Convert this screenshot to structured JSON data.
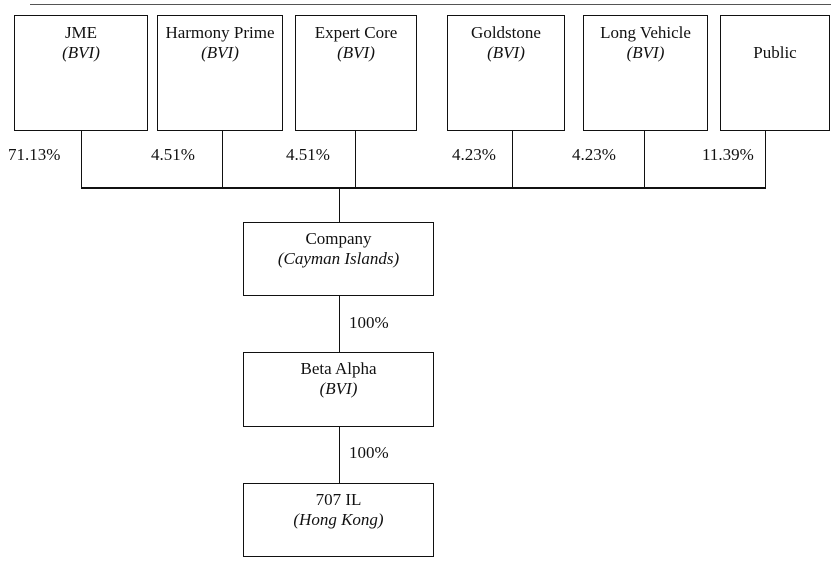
{
  "diagram": {
    "type": "corporate-ownership-structure",
    "top_row": [
      {
        "name": "JME",
        "jurisdiction": "(BVI)",
        "ownership_pct": "71.13%"
      },
      {
        "name": "Harmony Prime",
        "jurisdiction": "(BVI)",
        "ownership_pct": "4.51%"
      },
      {
        "name": "Expert Core",
        "jurisdiction": "(BVI)",
        "ownership_pct": "4.51%"
      },
      {
        "name": "Goldstone",
        "jurisdiction": "(BVI)",
        "ownership_pct": "4.23%"
      },
      {
        "name": "Long Vehicle",
        "jurisdiction": "(BVI)",
        "ownership_pct": "4.23%"
      },
      {
        "name": "Public",
        "jurisdiction": "",
        "ownership_pct": "11.39%"
      }
    ],
    "chain": {
      "company": {
        "name": "Company",
        "jurisdiction": "(Cayman Islands)"
      },
      "company_to_beta_pct": "100%",
      "beta_alpha": {
        "name": "Beta Alpha",
        "jurisdiction": "(BVI)"
      },
      "beta_to_707_pct": "100%",
      "il_707": {
        "name": "707 IL",
        "jurisdiction": "(Hong Kong)"
      }
    },
    "line_color": "#111111",
    "background_color": "#ffffff"
  }
}
